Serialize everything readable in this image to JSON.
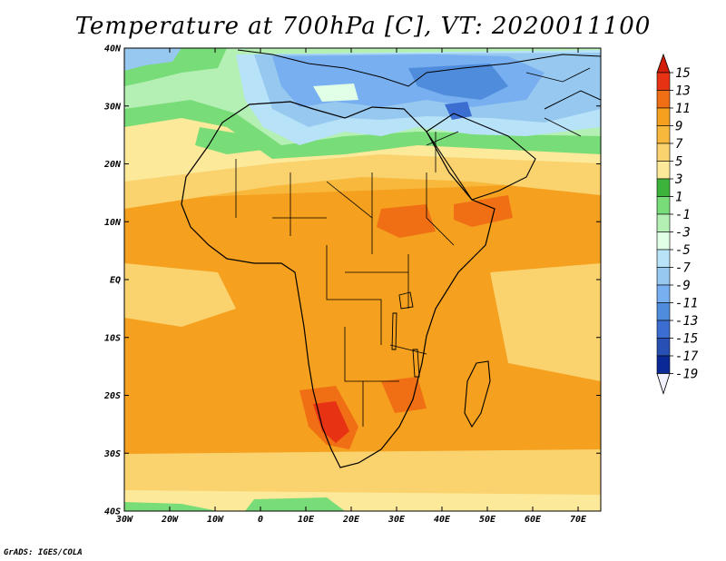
{
  "title": "Temperature at 700hPa [C], VT: 2020011100",
  "credit": "GrADS: IGES/COLA",
  "map": {
    "lat_labels": [
      "40N",
      "30N",
      "20N",
      "10N",
      "EQ",
      "10S",
      "20S",
      "30S",
      "40S"
    ],
    "lon_labels": [
      "30W",
      "20W",
      "10W",
      "0",
      "10E",
      "20E",
      "30E",
      "40E",
      "50E",
      "60E",
      "70E"
    ],
    "lat_range": [
      40,
      -40
    ],
    "lon_range": [
      -30,
      75
    ]
  },
  "colorbar": {
    "levels": [
      "15",
      "13",
      "11",
      "9",
      "7",
      "5",
      "3",
      "1",
      "-1",
      "-3",
      "-5",
      "-7",
      "-9",
      "-11",
      "-13",
      "-15",
      "-17",
      "-19"
    ],
    "colors": [
      "#e83214",
      "#f06e14",
      "#f5a01e",
      "#f8b83c",
      "#fad26e",
      "#fce99a",
      "#3cb43c",
      "#78dc78",
      "#b4f0b4",
      "#e0ffe6",
      "#b8e2f8",
      "#96c8f0",
      "#78aff0",
      "#508cdc",
      "#3c6ed2",
      "#2850b4",
      "#0a2896",
      "#f0f0ff"
    ],
    "top_color": "#d21e0a"
  }
}
